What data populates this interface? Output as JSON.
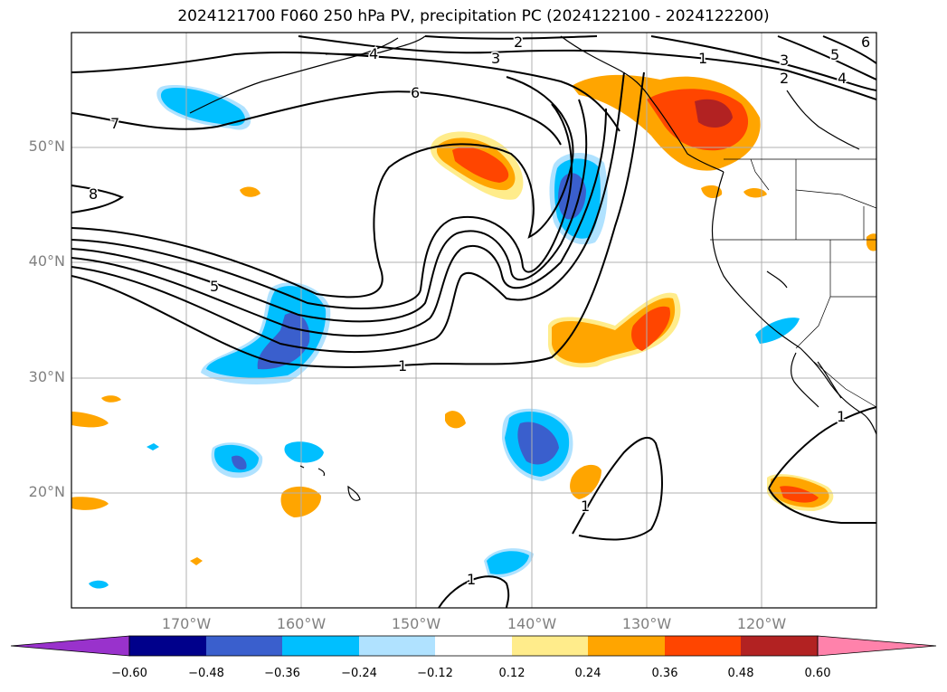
{
  "title": "2024121700 F060 250 hPa PV, precipitation PC (2024122100 - 2024122200)",
  "lat_labels": [
    "50°N",
    "40°N",
    "30°N",
    "20°N"
  ],
  "lon_labels": [
    "170°W",
    "160°W",
    "150°W",
    "140°W",
    "130°W",
    "120°W"
  ],
  "contour_labels": [
    "1",
    "2",
    "3",
    "4",
    "5",
    "6",
    "7",
    "8",
    "1",
    "2",
    "3",
    "4",
    "5",
    "6",
    "1",
    "1",
    "1"
  ],
  "colorbar": {
    "ticks": [
      "−0.60",
      "−0.48",
      "−0.36",
      "−0.24",
      "−0.12",
      "0.12",
      "0.24",
      "0.36",
      "0.48",
      "0.60"
    ],
    "colors": [
      "#9932cc",
      "#00008b",
      "#3a5fcd",
      "#00bfff",
      "#b0e2ff",
      "#ffffff",
      "#ffec8b",
      "#ffa500",
      "#ff4500",
      "#b22222",
      "#ff82ab"
    ]
  },
  "palette": {
    "neg_light": "#b0e2ff",
    "neg_mid": "#00bfff",
    "neg_strong": "#3a5fcd",
    "pos_light": "#ffec8b",
    "pos_mid": "#ffa500",
    "pos_strong": "#ff4500",
    "pos_max": "#b22222"
  }
}
